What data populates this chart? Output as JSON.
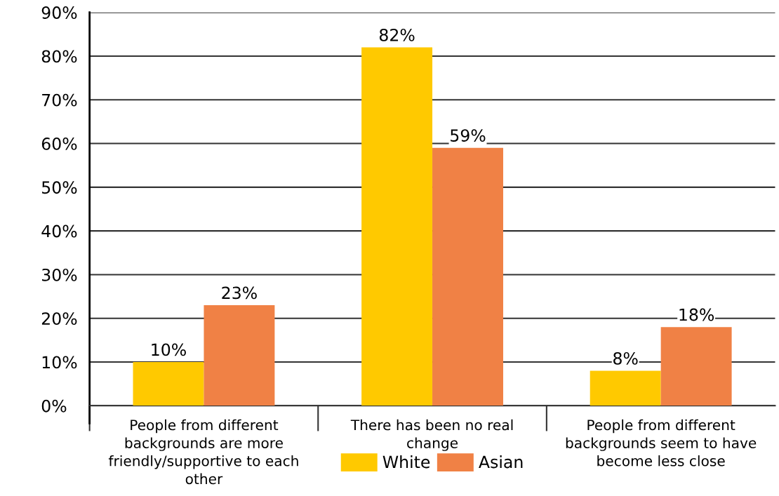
{
  "chart_data": {
    "type": "bar",
    "categories": [
      "People from different\nbackgrounds are more\nfriendly/supportive to each\nother",
      "There has been no real\nchange",
      "People from different\nbackgrounds seem to have\nbecome less close"
    ],
    "series": [
      {
        "name": "White",
        "color": "#ffc900",
        "values": [
          10,
          82,
          8
        ],
        "value_labels": [
          "10%",
          "82%",
          "8%"
        ]
      },
      {
        "name": "Asian",
        "color": "#f08145",
        "values": [
          23,
          59,
          18
        ],
        "value_labels": [
          "23%",
          "59%",
          "18%"
        ]
      }
    ],
    "ylim": [
      0,
      90
    ],
    "yticks": [
      {
        "value": 0,
        "label": "0%"
      },
      {
        "value": 10,
        "label": "10%"
      },
      {
        "value": 20,
        "label": "20%"
      },
      {
        "value": 30,
        "label": "30%"
      },
      {
        "value": 40,
        "label": "40%"
      },
      {
        "value": 50,
        "label": "50%"
      },
      {
        "value": 60,
        "label": "60%"
      },
      {
        "value": 70,
        "label": "70%"
      },
      {
        "value": 80,
        "label": "80%"
      },
      {
        "value": 90,
        "label": "90%"
      }
    ],
    "grid": "y",
    "legend": "bottom"
  }
}
